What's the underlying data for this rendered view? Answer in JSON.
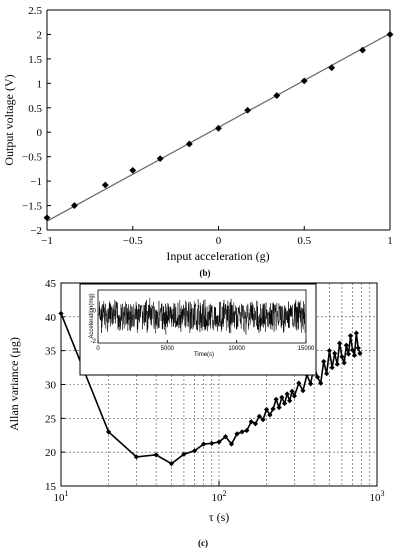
{
  "chart_data": [
    {
      "panel": "(b)",
      "type": "scatter",
      "xlabel": "Input acceleration (g)",
      "ylabel": "Output voltage (V)",
      "xlim": [
        -1,
        1
      ],
      "ylim": [
        -2,
        2.5
      ],
      "xticks": [
        -1,
        -0.5,
        0,
        0.5,
        1
      ],
      "xtick_labels": [
        "−1",
        "−0.5",
        "0",
        "0.5",
        "1"
      ],
      "yticks": [
        -2,
        -1.5,
        -1,
        -0.5,
        0,
        0.5,
        1,
        1.5,
        2,
        2.5
      ],
      "ytick_labels": [
        "−2",
        "−1.5",
        "−1",
        "−0.5",
        "0",
        "0.5",
        "1",
        "1.5",
        "2",
        "2.5"
      ],
      "grid": false,
      "series": [
        {
          "marker": "diamond",
          "color": "#000000",
          "x": [
            -1,
            -0.84,
            -0.66,
            -0.5,
            -0.34,
            -0.17,
            0,
            0.17,
            0.34,
            0.5,
            0.66,
            0.84,
            1
          ],
          "y": [
            -1.75,
            -1.5,
            -1.08,
            -0.78,
            -0.54,
            -0.24,
            0.08,
            0.45,
            0.75,
            1.05,
            1.32,
            1.68,
            2.0
          ]
        }
      ],
      "fit_line": {
        "x": [
          -1,
          1
        ],
        "y": [
          -1.82,
          2.02
        ],
        "color": "#666666"
      }
    },
    {
      "panel": "(c)",
      "type": "line",
      "xlabel": "τ (s)",
      "ylabel": "Allan variance (μg)",
      "xscale": "log",
      "xlim": [
        10,
        1000
      ],
      "ylim": [
        15,
        45
      ],
      "xtick_values": [
        10,
        100,
        1000
      ],
      "xtick_bases": [
        "10",
        "10",
        "10"
      ],
      "xtick_exps": [
        "1",
        "2",
        "3"
      ],
      "yticks": [
        15,
        20,
        25,
        30,
        35,
        40,
        45
      ],
      "ytick_labels": [
        "15",
        "20",
        "25",
        "30",
        "35",
        "40",
        "45"
      ],
      "grid": true,
      "series": [
        {
          "marker": "diamond",
          "color": "#000000",
          "x": [
            10,
            20,
            30,
            40,
            50,
            60,
            70,
            80,
            90,
            100,
            110,
            120,
            130,
            140,
            150,
            160,
            170,
            180,
            190,
            200,
            210,
            220,
            230,
            240,
            250,
            260,
            270,
            280,
            290,
            300,
            320,
            340,
            360,
            380,
            400,
            420,
            440,
            460,
            480,
            500,
            520,
            540,
            560,
            580,
            600,
            620,
            640,
            660,
            680,
            700,
            720,
            740,
            760,
            780
          ],
          "y": [
            40.5,
            23.0,
            19.3,
            19.6,
            18.3,
            19.7,
            20.2,
            21.2,
            21.3,
            21.5,
            22.3,
            21.2,
            22.7,
            23.0,
            23.2,
            24.5,
            24.2,
            25.3,
            24.8,
            26.3,
            25.5,
            26.4,
            27.8,
            26.6,
            28.1,
            27.2,
            28.6,
            27.6,
            29.0,
            28.3,
            30.2,
            29.1,
            31.4,
            30.1,
            32.8,
            31.1,
            30.2,
            33.4,
            31.6,
            35.0,
            32.5,
            34.6,
            33.0,
            36.1,
            34.1,
            33.2,
            35.8,
            34.5,
            37.2,
            35.1,
            34.3,
            37.6,
            35.4,
            34.6
          ]
        }
      ],
      "inset": {
        "xlabel": "Time(s)",
        "ylabel": "Acceleration(mg)",
        "xlim": [
          0,
          15000
        ],
        "xticks": [
          0,
          5000,
          10000,
          15000
        ],
        "xtick_labels": [
          "0",
          "5000",
          "10000",
          "15000"
        ],
        "yticks": [
          0,
          -2
        ],
        "ytick_labels": [
          "0",
          "-2"
        ],
        "signal_band": [
          -1.0,
          1.0
        ]
      }
    }
  ]
}
